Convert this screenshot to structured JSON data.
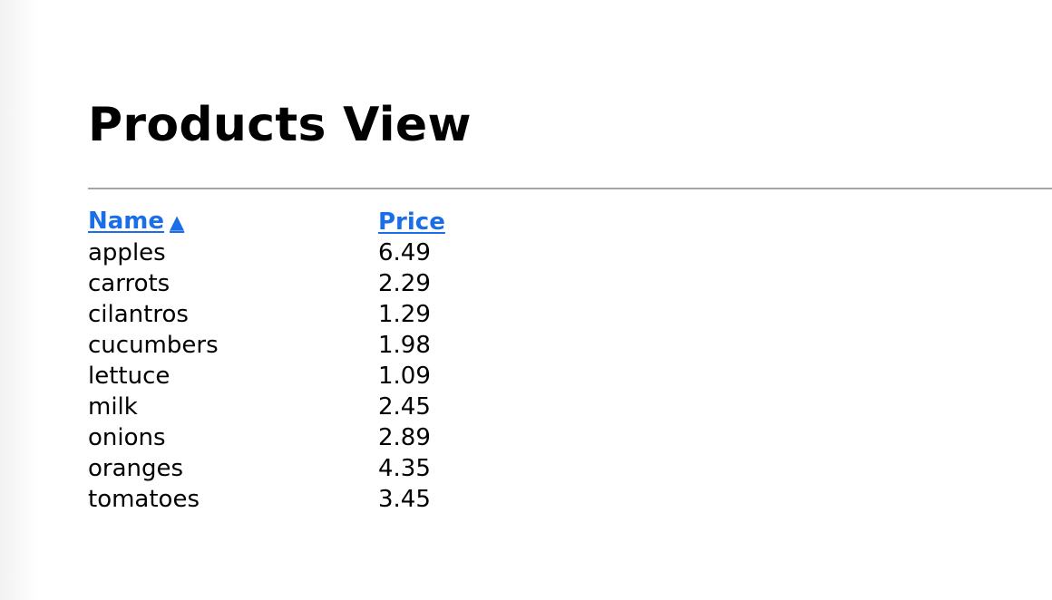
{
  "page": {
    "title": "Products View"
  },
  "table": {
    "columns": {
      "name": "Name",
      "price": "Price",
      "sort_indicator": "▲"
    },
    "rows": [
      {
        "name": "apples",
        "price": "6.49"
      },
      {
        "name": "carrots",
        "price": "2.29"
      },
      {
        "name": "cilantros",
        "price": "1.29"
      },
      {
        "name": "cucumbers",
        "price": "1.98"
      },
      {
        "name": "lettuce",
        "price": "1.09"
      },
      {
        "name": "milk",
        "price": "2.45"
      },
      {
        "name": "onions",
        "price": "2.89"
      },
      {
        "name": "oranges",
        "price": "4.35"
      },
      {
        "name": "tomatoes",
        "price": "3.45"
      }
    ]
  },
  "colors": {
    "link": "#1a6ee8",
    "divider": "#a6a6a6",
    "text": "#000000",
    "background": "#ffffff"
  }
}
